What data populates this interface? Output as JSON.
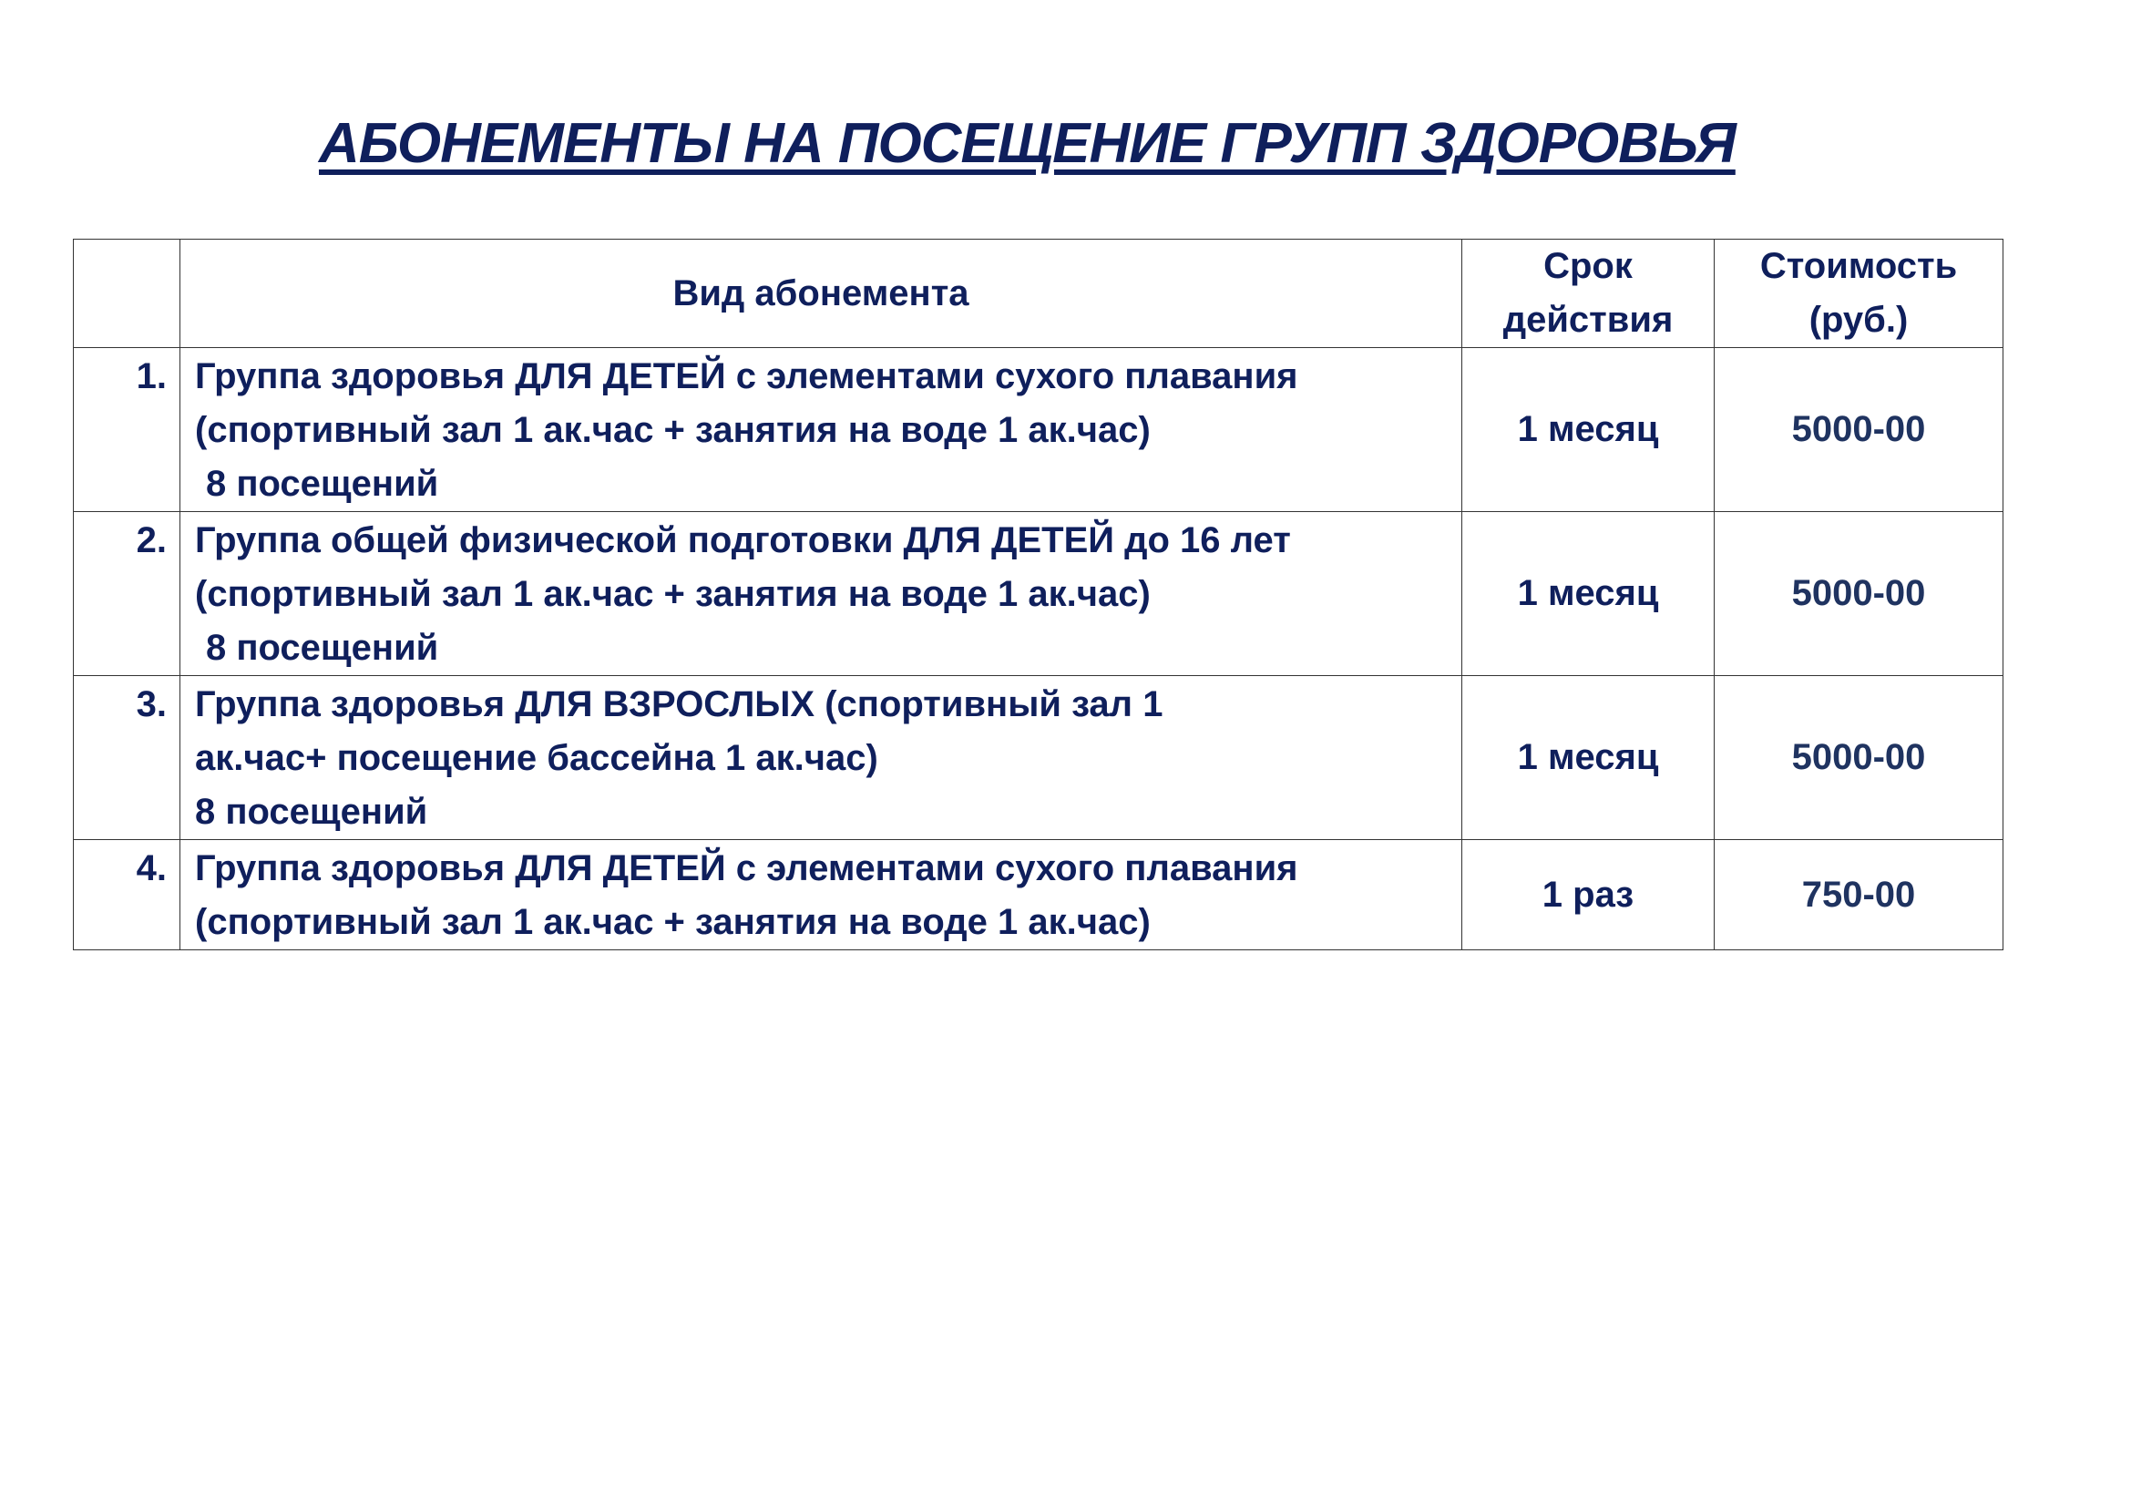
{
  "title": "АБОНЕМЕНТЫ НА ПОСЕЩЕНИЕ ГРУПП ЗДОРОВЬЯ",
  "table": {
    "headers": {
      "num": "",
      "type": "Вид абонемента",
      "term_line1": "Срок",
      "term_line2": "действия",
      "price_line1": "Стоимость",
      "price_line2": "(руб.)"
    },
    "rows": [
      {
        "num": "1.",
        "lines": [
          "Группа здоровья ДЛЯ ДЕТЕЙ с элементами сухого плавания",
          "(спортивный зал 1 ак.час + занятия на воде 1 ак.час)",
          "8 посещений"
        ],
        "term": "1 месяц",
        "price": "5000-00"
      },
      {
        "num": "2.",
        "lines": [
          "Группа общей физической подготовки ДЛЯ ДЕТЕЙ до 16 лет",
          "(спортивный зал 1 ак.час + занятия на воде 1 ак.час)",
          "8 посещений"
        ],
        "term": "1 месяц",
        "price": "5000-00"
      },
      {
        "num": "3.",
        "lines": [
          "Группа здоровья ДЛЯ ВЗРОСЛЫХ  (спортивный зал 1",
          "ак.час+ посещение бассейна 1 ак.час)",
          "8 посещений"
        ],
        "term": "1 месяц",
        "price": "5000-00"
      },
      {
        "num": "4.",
        "lines": [
          "Группа здоровья ДЛЯ ДЕТЕЙ с элементами сухого плавания",
          "(спортивный зал 1 ак.час + занятия на воде 1 ак.час)"
        ],
        "term": "1 раз",
        "price": "750-00"
      }
    ]
  },
  "colors": {
    "text": "#0f1f5c",
    "price": "#1f3360",
    "border": "#333333"
  }
}
